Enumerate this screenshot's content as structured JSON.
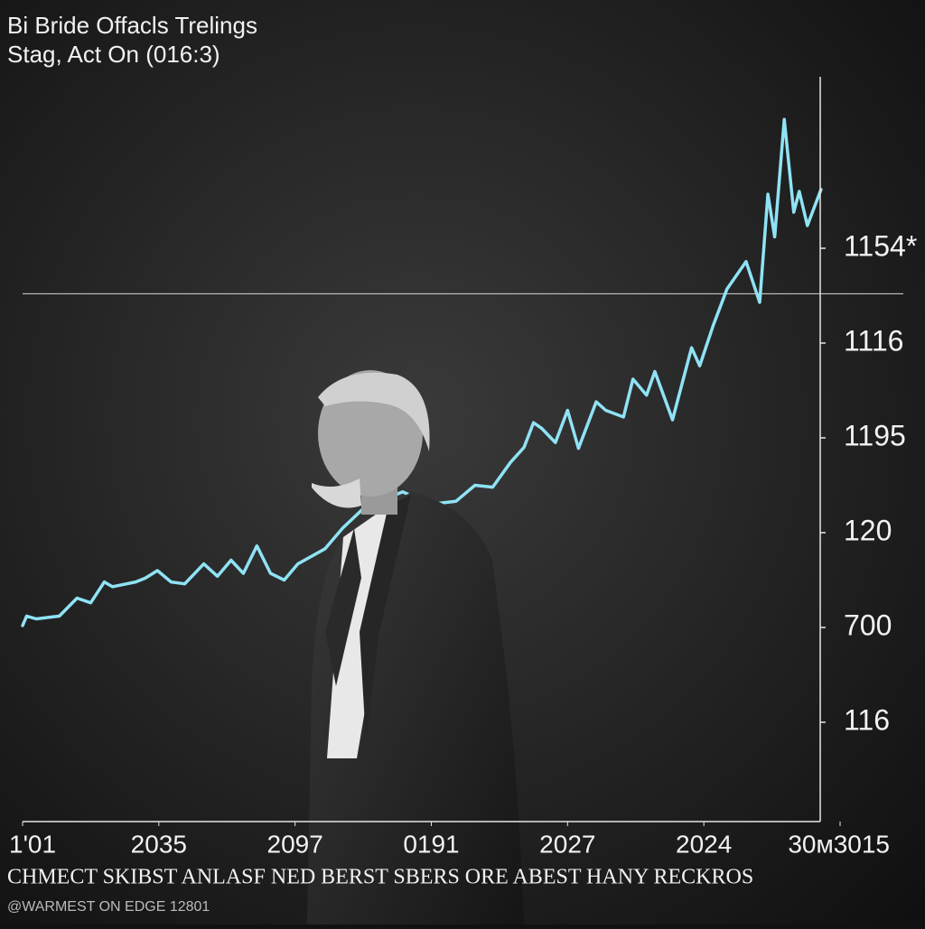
{
  "chart_data": {
    "type": "line",
    "title": "Bi Bride Offacls Trelings",
    "subtitle": "Stag, Act On (016:3)",
    "caption": "CHMECT SKIBST ANLASF NED BERST SBERS ORE ABEST HANY RECKROS",
    "footer": "@WARMEST ON EDGE 12801",
    "xlim": [
      0,
      6
    ],
    "ylim": [
      0,
      7.8
    ],
    "xticks": [
      {
        "value": 0,
        "label": "1'01"
      },
      {
        "value": 1,
        "label": "2035"
      },
      {
        "value": 2,
        "label": "2097"
      },
      {
        "value": 3,
        "label": "0191"
      },
      {
        "value": 4,
        "label": "2027"
      },
      {
        "value": 5,
        "label": "2024"
      },
      {
        "value": 6,
        "label": "30ᴍ3015"
      }
    ],
    "yticks": [
      {
        "value": 6,
        "label": "1154*"
      },
      {
        "value": 5,
        "label": "1116"
      },
      {
        "value": 4,
        "label": "1195"
      },
      {
        "value": 3,
        "label": "120"
      },
      {
        "value": 2,
        "label": "700"
      },
      {
        "value": 1,
        "label": "116"
      }
    ],
    "reference_line": 5.52,
    "series": [
      {
        "color": "#8fe3f5",
        "x": [
          0,
          0.03,
          0.1,
          0.27,
          0.4,
          0.5,
          0.6,
          0.66,
          0.83,
          0.9,
          0.99,
          1.09,
          1.19,
          1.33,
          1.43,
          1.53,
          1.62,
          1.72,
          1.82,
          1.92,
          2.02,
          2.22,
          2.35,
          2.49,
          2.62,
          2.79,
          2.95,
          3.05,
          3.18,
          3.32,
          3.45,
          3.58,
          3.68,
          3.75,
          3.81,
          3.91,
          4.0,
          4.08,
          4.21,
          4.28,
          4.41,
          4.48,
          4.58,
          4.64,
          4.77,
          4.91,
          4.97,
          5.07,
          5.17,
          5.31,
          5.41,
          5.47,
          5.52,
          5.59,
          5.66,
          5.7,
          5.76,
          5.86
        ],
        "values": [
          2.02,
          2.12,
          2.09,
          2.12,
          2.31,
          2.26,
          2.48,
          2.43,
          2.48,
          2.52,
          2.6,
          2.48,
          2.46,
          2.67,
          2.54,
          2.71,
          2.57,
          2.86,
          2.57,
          2.5,
          2.67,
          2.83,
          3.05,
          3.24,
          3.33,
          3.43,
          3.33,
          3.31,
          3.33,
          3.5,
          3.48,
          3.74,
          3.9,
          4.16,
          4.1,
          3.95,
          4.29,
          3.89,
          4.38,
          4.29,
          4.22,
          4.62,
          4.45,
          4.7,
          4.19,
          4.95,
          4.76,
          5.19,
          5.57,
          5.86,
          5.43,
          6.57,
          6.12,
          7.36,
          6.38,
          6.6,
          6.24,
          6.62
        ]
      }
    ]
  }
}
